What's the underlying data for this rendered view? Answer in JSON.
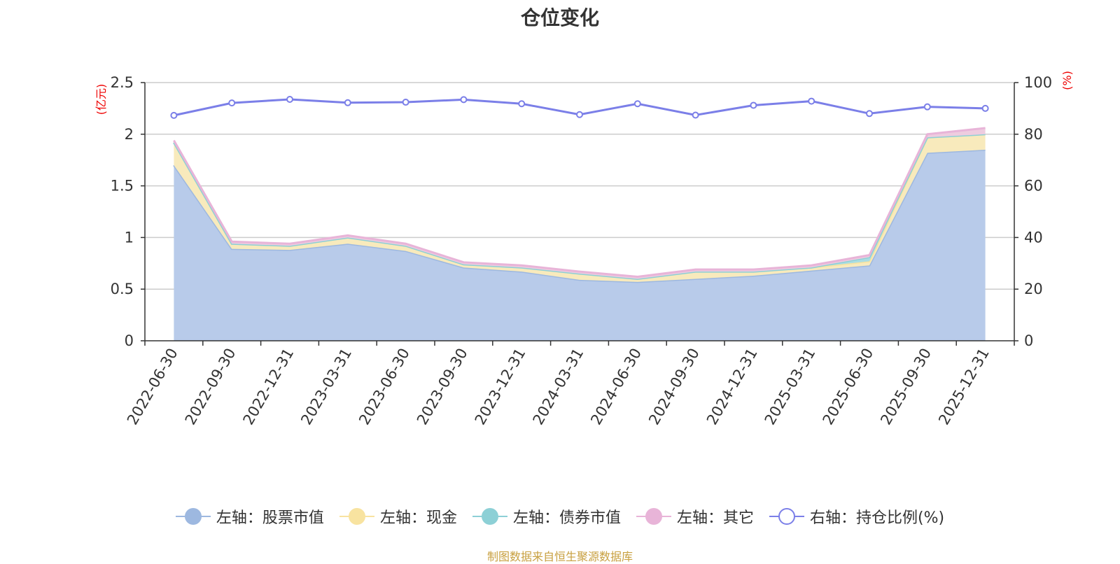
{
  "chart_data": {
    "type": "area",
    "title": "仓位变化",
    "left_axis_unit": "(亿元)",
    "right_axis_unit": "(%)",
    "categories": [
      "2022-06-30",
      "2022-09-30",
      "2022-12-31",
      "2023-03-31",
      "2023-06-30",
      "2023-09-30",
      "2023-12-31",
      "2024-03-31",
      "2024-06-30",
      "2024-09-30",
      "2024-12-31",
      "2025-03-31",
      "2025-06-30",
      "2025-09-30",
      "2025-12-31"
    ],
    "left_ylim": [
      0,
      2.5
    ],
    "left_ticks": [
      "0",
      "0.5",
      "1",
      "1.5",
      "2",
      "2.5"
    ],
    "left_tick_values": [
      0,
      0.5,
      1,
      1.5,
      2,
      2.5
    ],
    "right_ylim": [
      0,
      100
    ],
    "right_ticks": [
      "0",
      "20",
      "40",
      "60",
      "80",
      "100"
    ],
    "right_tick_values": [
      0,
      20,
      40,
      60,
      80,
      100
    ],
    "grid": true,
    "stacked": true,
    "legend_position": "bottom",
    "series": [
      {
        "name": "左轴：股票市值",
        "axis": "left",
        "color": "#9db8e0",
        "fill": "#b8cbea",
        "values": [
          1.7,
          0.89,
          0.88,
          0.94,
          0.87,
          0.71,
          0.67,
          0.59,
          0.57,
          0.6,
          0.63,
          0.68,
          0.73,
          1.82,
          1.85
        ]
      },
      {
        "name": "左轴：现金",
        "axis": "left",
        "color": "#f8e3a0",
        "fill": "#f8eabc",
        "values": [
          0.22,
          0.05,
          0.04,
          0.06,
          0.05,
          0.03,
          0.04,
          0.06,
          0.03,
          0.07,
          0.04,
          0.03,
          0.04,
          0.15,
          0.15
        ]
      },
      {
        "name": "左轴：债券市值",
        "axis": "left",
        "color": "#8dd0d6",
        "fill": "#aadde2",
        "values": [
          0.0,
          0.0,
          0.0,
          0.0,
          0.0,
          0.0,
          0.0,
          0.0,
          0.0,
          0.0,
          0.0,
          0.0,
          0.04,
          0.0,
          0.0
        ]
      },
      {
        "name": "左轴：其它",
        "axis": "left",
        "color": "#e8b4d8",
        "fill": "#eeccdf",
        "values": [
          0.02,
          0.02,
          0.02,
          0.02,
          0.02,
          0.02,
          0.02,
          0.02,
          0.02,
          0.02,
          0.02,
          0.02,
          0.02,
          0.03,
          0.06
        ]
      },
      {
        "name": "右轴：持仓比例(%)",
        "axis": "right",
        "type": "line",
        "color": "#7b7fe8",
        "values": [
          87.3,
          92.1,
          93.5,
          92.2,
          92.4,
          93.4,
          91.8,
          87.6,
          91.8,
          87.4,
          91.2,
          92.8,
          88.0,
          90.6,
          90.0
        ]
      }
    ],
    "source": "制图数据来自恒生聚源数据库"
  }
}
